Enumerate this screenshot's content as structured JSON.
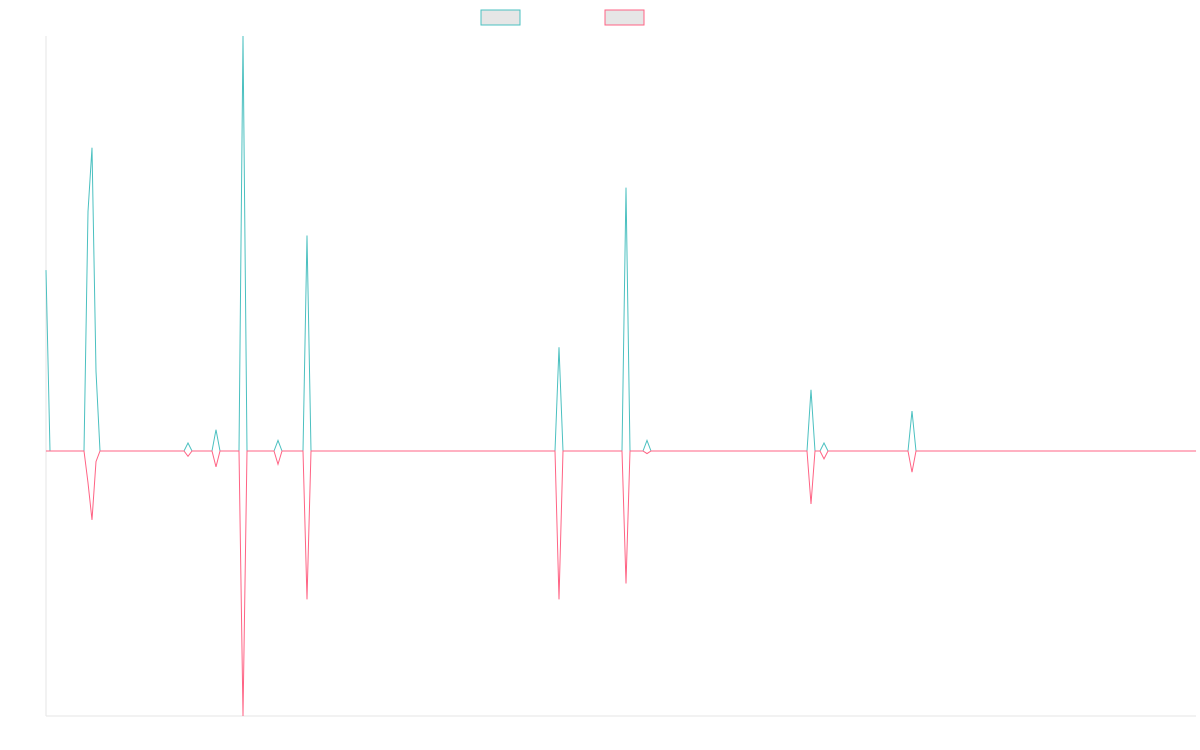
{
  "chart_data": {
    "type": "line",
    "title": "",
    "xlabel": "",
    "ylabel": "",
    "grid": false,
    "legend_position": "top-center",
    "x_range": [
      0,
      1200
    ],
    "ylim": [
      -1.0,
      1.56
    ],
    "series": [
      {
        "color": "#4bc0c0",
        "fill": "#e6e6e6",
        "points": [
          [
            0,
            0.68
          ],
          [
            4,
            0
          ],
          [
            38,
            0
          ],
          [
            42,
            0.9
          ],
          [
            46,
            1.14
          ],
          [
            50,
            0.3
          ],
          [
            54,
            0
          ],
          [
            138,
            0
          ],
          [
            142,
            0.03
          ],
          [
            146,
            0
          ],
          [
            166,
            0
          ],
          [
            170,
            0.08
          ],
          [
            174,
            0
          ],
          [
            193,
            0
          ],
          [
            197,
            1.56
          ],
          [
            201,
            0
          ],
          [
            228,
            0
          ],
          [
            232,
            0.04
          ],
          [
            236,
            0
          ],
          [
            257,
            0
          ],
          [
            261,
            0.81
          ],
          [
            265,
            0
          ],
          [
            509,
            0
          ],
          [
            513,
            0.39
          ],
          [
            517,
            0
          ],
          [
            576,
            0
          ],
          [
            580,
            0.99
          ],
          [
            584,
            0
          ],
          [
            597,
            0
          ],
          [
            601,
            0.04
          ],
          [
            605,
            0
          ],
          [
            761,
            0
          ],
          [
            765,
            0.23
          ],
          [
            769,
            0
          ],
          [
            774,
            0
          ],
          [
            778,
            0.03
          ],
          [
            782,
            0
          ],
          [
            862,
            0
          ],
          [
            866,
            0.15
          ],
          [
            870,
            0
          ],
          [
            1150,
            0
          ]
        ]
      },
      {
        "color": "#ff6384",
        "fill": "#e6e6e6",
        "points": [
          [
            0,
            0
          ],
          [
            4,
            0
          ],
          [
            38,
            0
          ],
          [
            42,
            -0.12
          ],
          [
            46,
            -0.26
          ],
          [
            50,
            -0.04
          ],
          [
            54,
            0
          ],
          [
            138,
            0
          ],
          [
            142,
            -0.02
          ],
          [
            146,
            0
          ],
          [
            166,
            0
          ],
          [
            170,
            -0.06
          ],
          [
            174,
            0
          ],
          [
            193,
            0
          ],
          [
            197,
            -1.0
          ],
          [
            201,
            0
          ],
          [
            228,
            0
          ],
          [
            232,
            -0.05
          ],
          [
            236,
            0
          ],
          [
            257,
            0
          ],
          [
            261,
            -0.56
          ],
          [
            265,
            0
          ],
          [
            509,
            0
          ],
          [
            513,
            -0.56
          ],
          [
            517,
            0
          ],
          [
            576,
            0
          ],
          [
            580,
            -0.5
          ],
          [
            584,
            0
          ],
          [
            597,
            0
          ],
          [
            601,
            -0.01
          ],
          [
            605,
            0
          ],
          [
            761,
            0
          ],
          [
            765,
            -0.2
          ],
          [
            769,
            0
          ],
          [
            774,
            0
          ],
          [
            778,
            -0.03
          ],
          [
            782,
            0
          ],
          [
            862,
            0
          ],
          [
            866,
            -0.08
          ],
          [
            870,
            0
          ],
          [
            1150,
            0
          ]
        ]
      }
    ]
  }
}
